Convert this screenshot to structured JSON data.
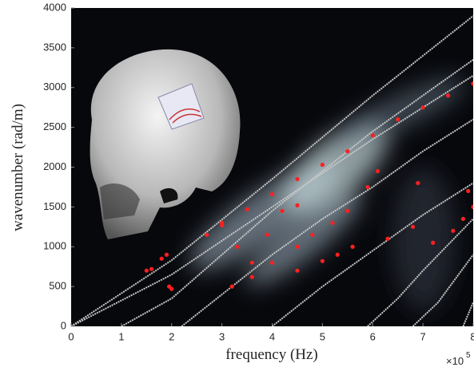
{
  "chart_data": {
    "type": "line",
    "x_label": "frequency (Hz)",
    "y_label": "wavenumber (rad/m)",
    "x_multiplier": {
      "base": "×10",
      "exponent": "5"
    },
    "xlim": [
      0,
      8
    ],
    "ylim": [
      0,
      4000
    ],
    "xticks": [
      0,
      1,
      2,
      3,
      4,
      5,
      6,
      7,
      8
    ],
    "yticks": [
      0,
      500,
      1000,
      1500,
      2000,
      2500,
      3000,
      3500,
      4000
    ],
    "series": [
      {
        "type": "line",
        "color": "#c8c8c8",
        "x": [
          0,
          2,
          4,
          6,
          8
        ],
        "values": [
          0,
          830,
          1850,
          2900,
          3900
        ]
      },
      {
        "type": "line",
        "color": "#c8c8c8",
        "x": [
          0,
          2,
          4,
          6,
          8
        ],
        "values": [
          0,
          650,
          1500,
          2350,
          3150
        ]
      },
      {
        "type": "line",
        "color": "#c8c8c8",
        "x": [
          1,
          2,
          3,
          4,
          5,
          6,
          7,
          8
        ],
        "values": [
          0,
          350,
          900,
          1450,
          1950,
          2450,
          2900,
          3350
        ]
      },
      {
        "type": "line",
        "color": "#c8c8c8",
        "x": [
          2.2,
          3,
          4,
          5,
          6,
          7,
          8
        ],
        "values": [
          0,
          400,
          900,
          1350,
          1750,
          2200,
          2600
        ]
      },
      {
        "type": "line",
        "color": "#c8c8c8",
        "x": [
          4,
          4.5,
          5,
          6,
          7,
          8
        ],
        "values": [
          0,
          250,
          500,
          950,
          1400,
          1800
        ]
      },
      {
        "type": "line",
        "color": "#c8c8c8",
        "x": [
          5.9,
          6.5,
          7,
          8
        ],
        "values": [
          0,
          350,
          700,
          1350
        ]
      },
      {
        "type": "line",
        "color": "#c8c8c8",
        "x": [
          6.8,
          7.3,
          8
        ],
        "values": [
          0,
          300,
          900
        ]
      },
      {
        "type": "line",
        "color": "#c8c8c8",
        "x": [
          7.8,
          8
        ],
        "values": [
          0,
          300
        ]
      },
      {
        "type": "scatter",
        "color": "#ff2020",
        "x": [
          1.5,
          1.6,
          1.8,
          1.9,
          2.0,
          1.95,
          2.7,
          3,
          3.5,
          4,
          4.5,
          5,
          5.5,
          6,
          6.5,
          7,
          7.5,
          8,
          3,
          3.3,
          3.6,
          3.9,
          4.2,
          4.5,
          3.2,
          3.6,
          4,
          4.5,
          4.8,
          5.2,
          5.5,
          5.9,
          6.1,
          4.5,
          5,
          5.3,
          5.6,
          6.3,
          6.8,
          6.9,
          7.2,
          7.6,
          7.8,
          7.9,
          8
        ],
        "values": [
          700,
          720,
          850,
          900,
          470,
          500,
          1150,
          1270,
          1470,
          1660,
          1850,
          2030,
          2200,
          2400,
          2600,
          2750,
          2900,
          3050,
          1300,
          1000,
          800,
          1150,
          1450,
          1520,
          500,
          620,
          800,
          1000,
          1150,
          1300,
          1450,
          1750,
          1950,
          700,
          820,
          900,
          1000,
          1100,
          1250,
          1800,
          1050,
          1200,
          1350,
          1700,
          1500
        ]
      }
    ]
  }
}
